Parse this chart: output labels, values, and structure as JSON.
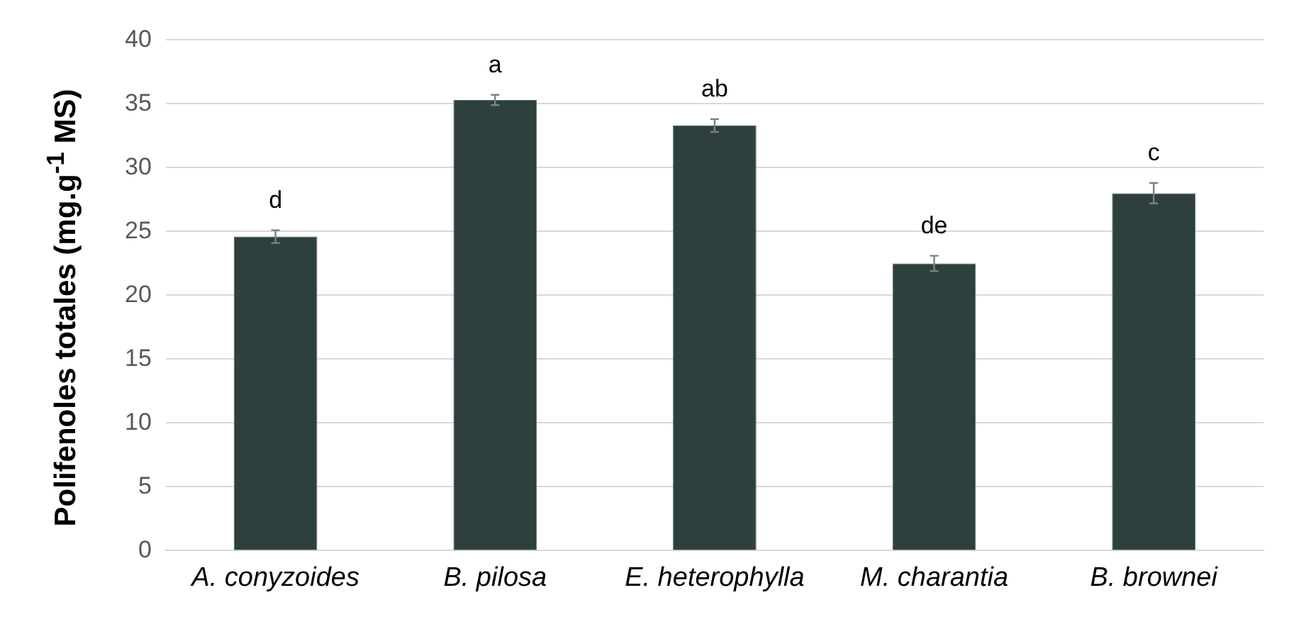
{
  "chart_data": {
    "type": "bar",
    "ylabel": "Polifenoles totales (mg.g$^{-1}$ MS)",
    "categories": [
      "A. conyzoides",
      "B. pilosa",
      "E. heterophylla",
      "M. charantia",
      "B. brownei"
    ],
    "values": [
      24.6,
      35.3,
      33.3,
      22.5,
      28.0
    ],
    "color": "#2e403e",
    "errors": [
      0.5,
      0.4,
      0.5,
      0.6,
      0.8
    ],
    "ylim": [
      0,
      40
    ],
    "yticks": [
      0,
      5,
      10,
      15,
      20,
      25,
      30,
      35,
      40
    ],
    "grid": "y",
    "annotations": [
      {
        "text": "d",
        "x": "A. conyzoides",
        "y": 24.6
      },
      {
        "text": "a",
        "x": "B. pilosa",
        "y": 35.3
      },
      {
        "text": "ab",
        "x": "E. heterophylla",
        "y": 33.3
      },
      {
        "text": "de",
        "x": "M. charantia",
        "y": 22.5
      },
      {
        "text": "c",
        "x": "B. brownei",
        "y": 28.0
      }
    ]
  }
}
